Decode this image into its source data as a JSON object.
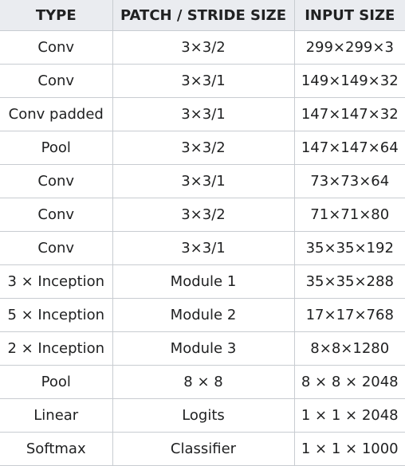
{
  "table": {
    "headers": [
      "TYPE",
      "PATCH / STRIDE SIZE",
      "INPUT SIZE"
    ],
    "rows": [
      [
        "Conv",
        "3×3/2",
        "299×299×3"
      ],
      [
        "Conv",
        "3×3/1",
        "149×149×32"
      ],
      [
        "Conv padded",
        "3×3/1",
        "147×147×32"
      ],
      [
        "Pool",
        "3×3/2",
        "147×147×64"
      ],
      [
        "Conv",
        "3×3/1",
        "73×73×64"
      ],
      [
        "Conv",
        "3×3/2",
        "71×71×80"
      ],
      [
        "Conv",
        "3×3/1",
        "35×35×192"
      ],
      [
        "3 × Inception",
        "Module 1",
        "35×35×288"
      ],
      [
        "5 × Inception",
        "Module 2",
        "17×17×768"
      ],
      [
        "2 × Inception",
        "Module 3",
        "8×8×1280"
      ],
      [
        "Pool",
        "8 × 8",
        "8 × 8 × 2048"
      ],
      [
        "Linear",
        "Logits",
        "1 × 1 × 2048"
      ],
      [
        "Softmax",
        "Classifier",
        "1 × 1 × 1000"
      ]
    ]
  }
}
